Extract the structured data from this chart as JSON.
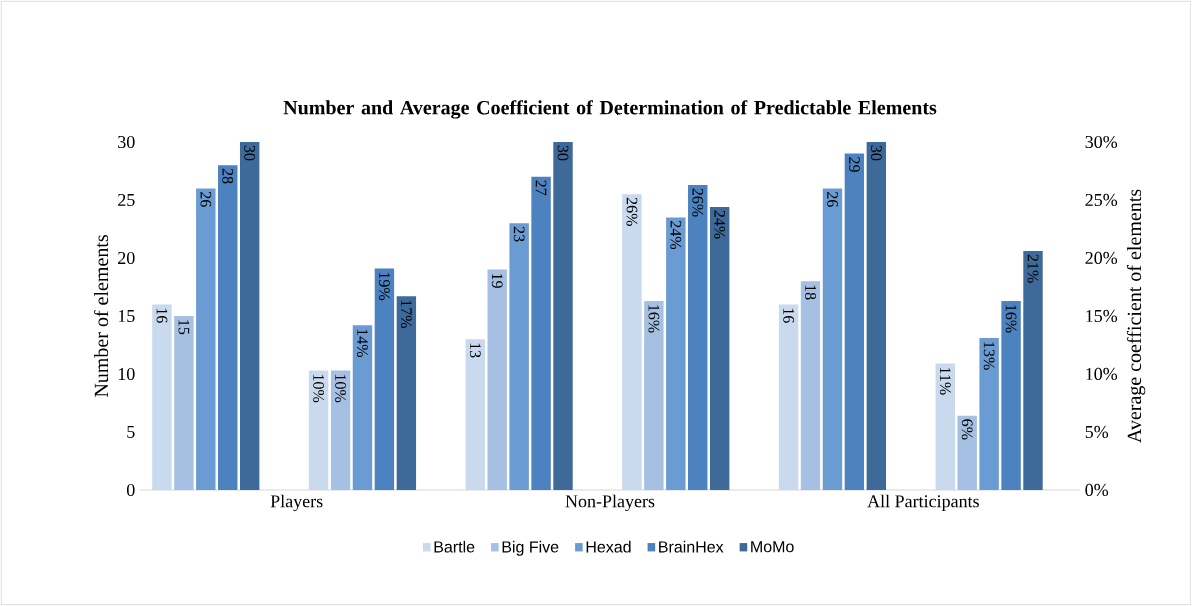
{
  "chart_data": {
    "type": "bar",
    "title": "Number and Average Coefficient of Determination of Predictable Elements",
    "categories": [
      "Players",
      "Non-Players",
      "All Participants"
    ],
    "ylabel": "Number of elements",
    "y2label": "Average coefficient of elements",
    "ylim": [
      0,
      30
    ],
    "yticks": [
      0,
      5,
      10,
      15,
      20,
      25,
      30
    ],
    "y2lim": [
      0,
      30
    ],
    "y2ticks": [
      {
        "value": 0,
        "label": "0%"
      },
      {
        "value": 5,
        "label": "5%"
      },
      {
        "value": 10,
        "label": "10%"
      },
      {
        "value": 15,
        "label": "15%"
      },
      {
        "value": 20,
        "label": "20%"
      },
      {
        "value": 25,
        "label": "25%"
      },
      {
        "value": 30,
        "label": "30%"
      }
    ],
    "legend": "bottom",
    "grid": false,
    "series": [
      {
        "name": "Bartle",
        "color": "#c9d9ee",
        "values": [
          16,
          13,
          16
        ],
        "value_labels": [
          "16",
          "13",
          "16"
        ]
      },
      {
        "name": "Big Five",
        "color": "#a6c0e3",
        "values": [
          15,
          19,
          18
        ],
        "value_labels": [
          "15",
          "19",
          "18"
        ]
      },
      {
        "name": "Hexad",
        "color": "#6a9bd2",
        "values": [
          26,
          23,
          26
        ],
        "value_labels": [
          "26",
          "23",
          "26"
        ]
      },
      {
        "name": "BrainHex",
        "color": "#4b82bf",
        "values": [
          28,
          27,
          29
        ],
        "value_labels": [
          "28",
          "27",
          "29"
        ]
      },
      {
        "name": "MoMo",
        "color": "#3e6a9a",
        "values": [
          30,
          30,
          30
        ],
        "value_labels": [
          "30",
          "30",
          "30"
        ]
      },
      {
        "color": "#c9d9ee",
        "axis": "y2",
        "values": [
          10.3,
          25.5,
          10.9
        ],
        "value_labels": [
          "10%",
          "26%",
          "11%"
        ]
      },
      {
        "color": "#a6c0e3",
        "axis": "y2",
        "values": [
          10.3,
          16.3,
          6.4
        ],
        "value_labels": [
          "10%",
          "16%",
          "6%"
        ]
      },
      {
        "color": "#6a9bd2",
        "axis": "y2",
        "values": [
          14.2,
          23.5,
          13.1
        ],
        "value_labels": [
          "14%",
          "24%",
          "13%"
        ]
      },
      {
        "color": "#4b82bf",
        "axis": "y2",
        "values": [
          19.1,
          26.3,
          16.3
        ],
        "value_labels": [
          "19%",
          "26%",
          "16%"
        ]
      },
      {
        "color": "#3e6a9a",
        "axis": "y2",
        "values": [
          16.7,
          24.4,
          20.6
        ],
        "value_labels": [
          "17%",
          "24%",
          "21%"
        ]
      }
    ]
  }
}
